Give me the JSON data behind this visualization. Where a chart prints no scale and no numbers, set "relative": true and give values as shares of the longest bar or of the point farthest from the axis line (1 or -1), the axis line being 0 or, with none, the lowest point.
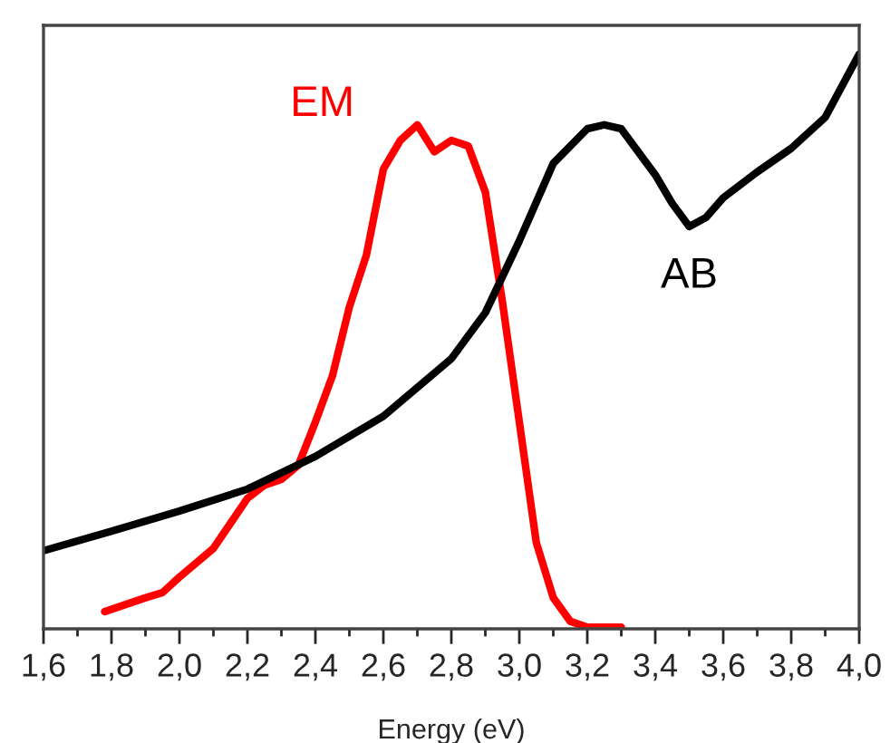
{
  "chart_data": {
    "type": "line",
    "relative": true,
    "xlabel": "Energy (eV)",
    "xlim": [
      1.6,
      4.0
    ],
    "xticks": [
      {
        "value": 1.6,
        "label": "1,6"
      },
      {
        "value": 1.7,
        "label": null
      },
      {
        "value": 1.8,
        "label": "1,8"
      },
      {
        "value": 1.9,
        "label": null
      },
      {
        "value": 2.0,
        "label": "2,0"
      },
      {
        "value": 2.1,
        "label": null
      },
      {
        "value": 2.2,
        "label": "2,2"
      },
      {
        "value": 2.3,
        "label": null
      },
      {
        "value": 2.4,
        "label": "2,4"
      },
      {
        "value": 2.5,
        "label": null
      },
      {
        "value": 2.6,
        "label": "2,6"
      },
      {
        "value": 2.7,
        "label": null
      },
      {
        "value": 2.8,
        "label": "2,8"
      },
      {
        "value": 2.9,
        "label": null
      },
      {
        "value": 3.0,
        "label": "3,0"
      },
      {
        "value": 3.1,
        "label": null
      },
      {
        "value": 3.2,
        "label": "3,2"
      },
      {
        "value": 3.3,
        "label": null
      },
      {
        "value": 3.4,
        "label": "3,4"
      },
      {
        "value": 3.5,
        "label": null
      },
      {
        "value": 3.6,
        "label": "3,6"
      },
      {
        "value": 3.7,
        "label": null
      },
      {
        "value": 3.8,
        "label": "3,8"
      },
      {
        "value": 3.9,
        "label": null
      },
      {
        "value": 4.0,
        "label": "4,0"
      }
    ],
    "tick_labels": "x",
    "grid": false,
    "legend": false,
    "marker": "none",
    "line_style": "solid",
    "series": [
      {
        "name": "EM",
        "color": "#ff0000",
        "x": [
          1.78,
          1.9,
          1.95,
          2.0,
          2.1,
          2.2,
          2.25,
          2.3,
          2.35,
          2.4,
          2.45,
          2.5,
          2.55,
          2.6,
          2.65,
          2.7,
          2.75,
          2.8,
          2.85,
          2.9,
          2.95,
          3.0,
          3.05,
          3.1,
          3.15,
          3.2,
          3.3
        ],
        "values": [
          0.03,
          0.054,
          0.063,
          0.09,
          0.14,
          0.227,
          0.25,
          0.26,
          0.285,
          0.36,
          0.44,
          0.56,
          0.65,
          0.8,
          0.85,
          0.877,
          0.83,
          0.85,
          0.84,
          0.76,
          0.57,
          0.36,
          0.15,
          0.054,
          0.013,
          0.003,
          0.003
        ]
      },
      {
        "name": "AB",
        "color": "#000000",
        "x": [
          1.6,
          1.8,
          2.0,
          2.2,
          2.4,
          2.6,
          2.7,
          2.8,
          2.9,
          3.0,
          3.1,
          3.2,
          3.25,
          3.3,
          3.4,
          3.45,
          3.5,
          3.55,
          3.6,
          3.7,
          3.8,
          3.9,
          4.0
        ],
        "values": [
          0.136,
          0.17,
          0.205,
          0.243,
          0.3,
          0.37,
          0.42,
          0.47,
          0.55,
          0.675,
          0.81,
          0.87,
          0.877,
          0.87,
          0.79,
          0.74,
          0.7,
          0.716,
          0.75,
          0.795,
          0.836,
          0.89,
          1.0
        ]
      }
    ]
  }
}
